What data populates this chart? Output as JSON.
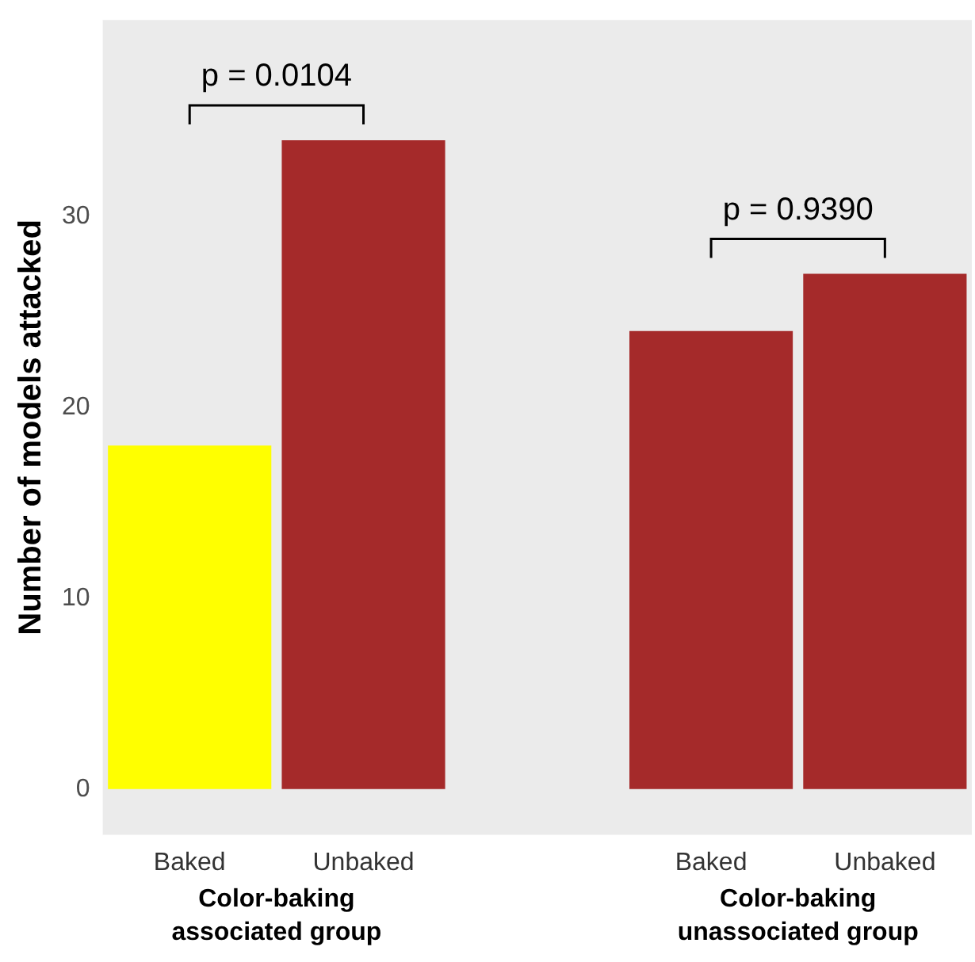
{
  "chart_data": {
    "type": "bar",
    "ylabel": "Number of models attacked",
    "categories": [
      "Baked",
      "Unbaked",
      null,
      "Baked",
      "Unbaked"
    ],
    "values": [
      18,
      34,
      null,
      24,
      27
    ],
    "colors": [
      "#ffff00",
      "#a52a2a",
      null,
      "#a52a2a",
      "#a52a2a"
    ],
    "ylim": [
      -2.4,
      40.3
    ],
    "yticks": [
      0,
      10,
      20,
      30
    ],
    "grid": false,
    "legend": false,
    "annotations": [
      "p = 0.0104",
      "p = 0.9390",
      "Color-baking\nassociated group",
      "Color-baking\nunassociated group"
    ]
  }
}
